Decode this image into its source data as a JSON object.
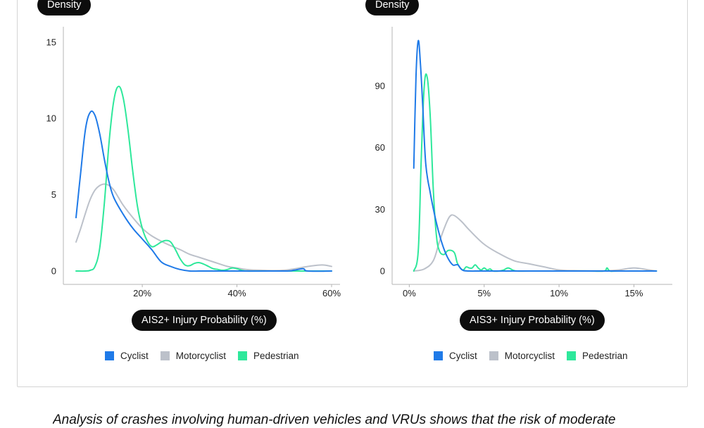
{
  "colors": {
    "cyclist": "#1f7ae8",
    "motorcyclist": "#bcc1ca",
    "pedestrian": "#2ee89b",
    "axis": "#b4b4b4",
    "pill_bg": "#0d0d0d"
  },
  "caption": "Analysis of crashes involving human-driven vehicles and VRUs shows that the risk of moderate",
  "chart_data": [
    {
      "type": "line",
      "title": "",
      "ylabel": "Density",
      "xlabel": "AIS2+ Injury Probability (%)",
      "xlim": [
        6,
        60
      ],
      "ylim": [
        0,
        15.5
      ],
      "xticks": [
        20,
        40,
        60
      ],
      "xtick_labels": [
        "20%",
        "40%",
        "60%"
      ],
      "yticks": [
        0,
        5,
        10,
        15
      ],
      "ytick_labels": [
        "0",
        "5",
        "10",
        "15"
      ],
      "legend": "bottom-center",
      "grid": false,
      "series": [
        {
          "name": "Cyclist",
          "color_key": "cyclist",
          "x": [
            6,
            7,
            8,
            9,
            10,
            11,
            12,
            13,
            14,
            16,
            18,
            20,
            22,
            24,
            26,
            28,
            30,
            32,
            34,
            40,
            50,
            52,
            54,
            55,
            60
          ],
          "y": [
            3.5,
            6.5,
            9.3,
            10.4,
            10.2,
            9.0,
            7.3,
            5.8,
            4.8,
            3.7,
            2.8,
            2.1,
            1.4,
            0.6,
            0.3,
            0.1,
            0,
            0,
            0,
            0,
            0,
            0.05,
            0.15,
            0,
            0
          ]
        },
        {
          "name": "Motorcyclist",
          "color_key": "motorcyclist",
          "x": [
            6,
            7,
            8,
            9,
            10,
            11,
            12,
            13,
            14,
            15,
            16,
            18,
            20,
            22,
            25,
            28,
            30,
            32,
            35,
            38,
            40,
            42,
            45,
            50,
            55,
            58,
            60
          ],
          "y": [
            1.9,
            2.8,
            3.8,
            4.7,
            5.3,
            5.6,
            5.7,
            5.6,
            5.3,
            4.8,
            4.3,
            3.5,
            2.8,
            2.3,
            1.8,
            1.4,
            1.1,
            0.9,
            0.6,
            0.3,
            0.2,
            0.1,
            0.05,
            0.05,
            0.3,
            0.4,
            0.3
          ]
        },
        {
          "name": "Pedestrian",
          "color_key": "pedestrian",
          "x": [
            6,
            8,
            9,
            10,
            11,
            12,
            13,
            14,
            15,
            16,
            17,
            18,
            19,
            20,
            21,
            22,
            23,
            24,
            25,
            26,
            27,
            28,
            29,
            30,
            31,
            32,
            33,
            34,
            35,
            36,
            37,
            38,
            39,
            40,
            41,
            42,
            44,
            50,
            60
          ],
          "y": [
            0,
            0,
            0.05,
            0.3,
            1.5,
            4.5,
            8.5,
            11.2,
            12.1,
            11.3,
            9.2,
            6.5,
            4.2,
            2.8,
            2.0,
            1.6,
            1.7,
            1.9,
            2.0,
            1.9,
            1.4,
            0.8,
            0.4,
            0.35,
            0.5,
            0.55,
            0.45,
            0.3,
            0.15,
            0.1,
            0.05,
            0.1,
            0.2,
            0.15,
            0.05,
            0,
            0,
            0,
            0
          ]
        }
      ]
    },
    {
      "type": "line",
      "title": "",
      "ylabel": "Density",
      "xlabel": "AIS3+ Injury Probability (%)",
      "xlim": [
        -0.3,
        17
      ],
      "ylim": [
        0,
        115
      ],
      "xticks": [
        0,
        5,
        10,
        15
      ],
      "xtick_labels": [
        "0%",
        "5%",
        "10%",
        "15%"
      ],
      "yticks": [
        0,
        30,
        60,
        90
      ],
      "ytick_labels": [
        "0",
        "30",
        "60",
        "90"
      ],
      "legend": "bottom-center",
      "grid": false,
      "series": [
        {
          "name": "Cyclist",
          "color_key": "cyclist",
          "x": [
            0.3,
            0.45,
            0.6,
            0.75,
            0.9,
            1.1,
            1.4,
            1.7,
            2.0,
            2.3,
            2.6,
            2.9,
            3.1,
            3.25,
            3.4,
            3.6,
            4.0,
            5,
            8,
            12,
            16.5
          ],
          "y": [
            50,
            95,
            112,
            100,
            80,
            52,
            38,
            27,
            18,
            11,
            6,
            3,
            3,
            3,
            1.5,
            0.3,
            0,
            0,
            0,
            0,
            0
          ]
        },
        {
          "name": "Motorcyclist",
          "color_key": "motorcyclist",
          "x": [
            0.3,
            1.0,
            1.6,
            2.0,
            2.4,
            2.7,
            3.0,
            3.5,
            4.0,
            5.0,
            6.0,
            7.0,
            8.0,
            9.0,
            10,
            11,
            12,
            13,
            14,
            15,
            16,
            16.5
          ],
          "y": [
            0,
            1,
            5,
            14,
            22,
            26.5,
            27,
            24,
            20,
            13,
            8.5,
            5,
            3.5,
            2,
            0.5,
            0.2,
            0.1,
            0.1,
            0.5,
            1.5,
            0.5,
            0
          ],
          "note": ""
        },
        {
          "name": "Pedestrian",
          "color_key": "pedestrian",
          "x": [
            0.3,
            0.6,
            0.8,
            1.0,
            1.2,
            1.4,
            1.6,
            1.8,
            2.0,
            2.3,
            2.6,
            3.0,
            3.2,
            3.4,
            3.6,
            3.8,
            4.0,
            4.2,
            4.4,
            4.6,
            4.8,
            5.0,
            5.2,
            5.4,
            5.6,
            6.0,
            6.3,
            6.6,
            6.9,
            7.2,
            8,
            10,
            12,
            13.0,
            13.2,
            13.4,
            14,
            16.5
          ],
          "y": [
            0,
            10,
            55,
            90,
            94,
            75,
            40,
            18,
            10,
            8,
            10,
            9,
            4,
            1.5,
            0.5,
            2,
            1.5,
            1.5,
            3,
            1.5,
            0.5,
            1.5,
            0.5,
            1,
            0,
            0,
            0.5,
            1.5,
            0.5,
            0,
            0,
            0,
            0,
            0,
            1.5,
            0,
            0,
            0
          ]
        }
      ]
    }
  ]
}
